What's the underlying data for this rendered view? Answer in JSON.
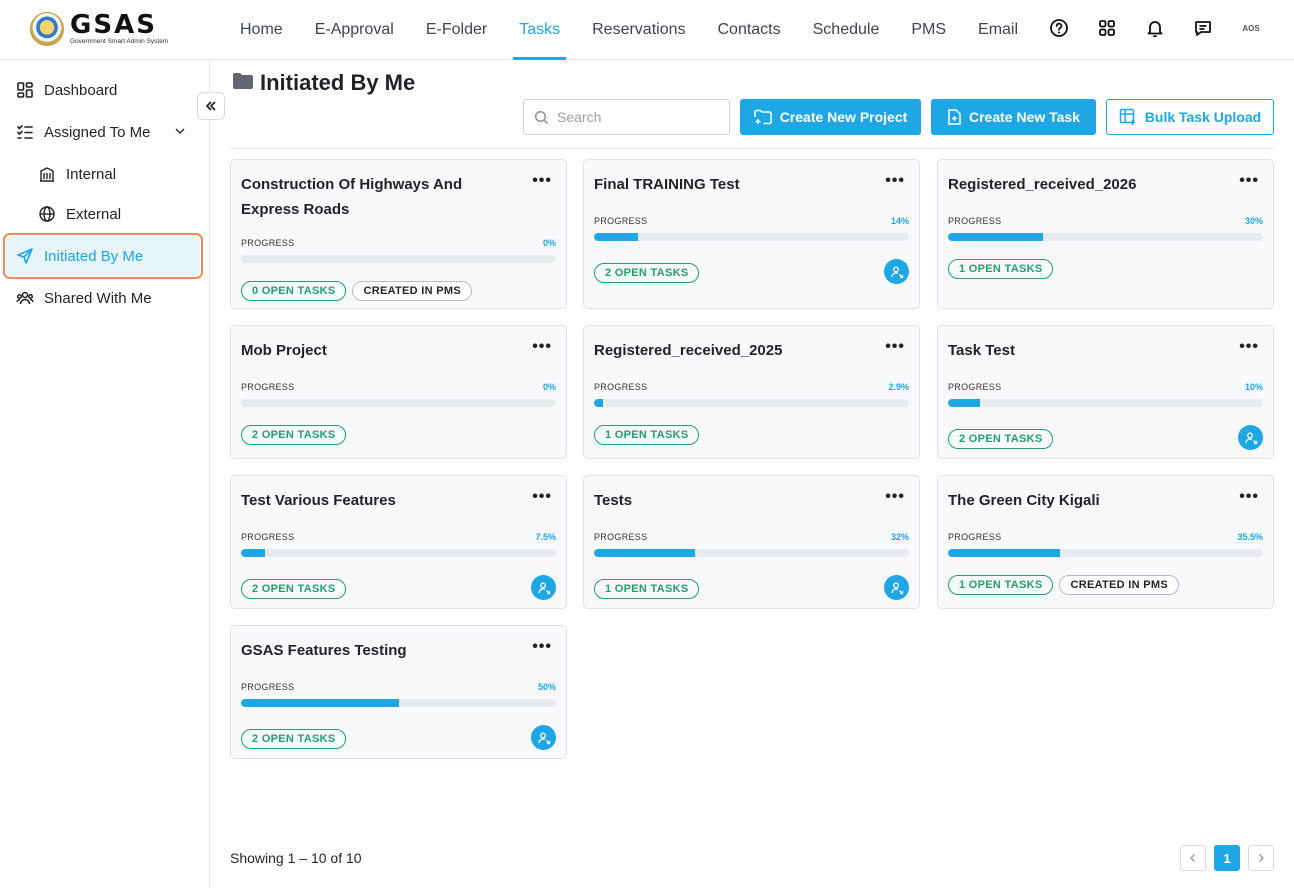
{
  "header": {
    "logo_title": "GSAS",
    "logo_subtitle": "Government Smart Admin System",
    "nav": [
      "Home",
      "E-Approval",
      "E-Folder",
      "Tasks",
      "Reservations",
      "Contacts",
      "Schedule",
      "PMS",
      "Email"
    ],
    "active_nav": "Tasks",
    "avatar_text": "AOS"
  },
  "sidebar": {
    "items": [
      {
        "label": "Dashboard",
        "icon": "dashboard-icon"
      },
      {
        "label": "Assigned To Me",
        "icon": "checklist-icon"
      },
      {
        "label": "Internal",
        "icon": "building-icon"
      },
      {
        "label": "External",
        "icon": "globe-icon"
      },
      {
        "label": "Initiated By Me",
        "icon": "send-icon"
      },
      {
        "label": "Shared With Me",
        "icon": "users-icon"
      }
    ],
    "active": "Initiated By Me"
  },
  "main": {
    "title": "Initiated By Me",
    "search_placeholder": "Search",
    "create_project_label": "Create New Project",
    "create_task_label": "Create New Task",
    "bulk_upload_label": "Bulk Task Upload",
    "progress_label": "PROGRESS",
    "cards": [
      {
        "title": "Construction Of Highways And Express Roads",
        "progress": 0,
        "progress_text": "0%",
        "open_tasks": "0 OPEN TASKS",
        "pms": "CREATED IN PMS",
        "assign": false
      },
      {
        "title": "Final TRAINING Test",
        "progress": 14,
        "progress_text": "14%",
        "open_tasks": "2 OPEN TASKS",
        "pms": "",
        "assign": true
      },
      {
        "title": "Registered_received_2026",
        "progress": 30,
        "progress_text": "30%",
        "open_tasks": "1 OPEN TASKS",
        "pms": "",
        "assign": false
      },
      {
        "title": "Mob Project",
        "progress": 0,
        "progress_text": "0%",
        "open_tasks": "2 OPEN TASKS",
        "pms": "",
        "assign": false
      },
      {
        "title": "Registered_received_2025",
        "progress": 2.9,
        "progress_text": "2.9%",
        "open_tasks": "1 OPEN TASKS",
        "pms": "",
        "assign": false
      },
      {
        "title": "Task Test",
        "progress": 10,
        "progress_text": "10%",
        "open_tasks": "2 OPEN TASKS",
        "pms": "",
        "assign": true
      },
      {
        "title": "Test Various Features",
        "progress": 7.5,
        "progress_text": "7.5%",
        "open_tasks": "2 OPEN TASKS",
        "pms": "",
        "assign": true
      },
      {
        "title": "Tests",
        "progress": 32,
        "progress_text": "32%",
        "open_tasks": "1 OPEN TASKS",
        "pms": "",
        "assign": true
      },
      {
        "title": "The Green City Kigali",
        "progress": 35.5,
        "progress_text": "35.5%",
        "open_tasks": "1 OPEN TASKS",
        "pms": "CREATED IN PMS",
        "assign": false
      },
      {
        "title": "GSAS Features Testing",
        "progress": 50,
        "progress_text": "50%",
        "open_tasks": "2 OPEN TASKS",
        "pms": "",
        "assign": true
      }
    ]
  },
  "footer": {
    "showing": "Showing 1 – 10 of 10",
    "current_page": "1"
  },
  "colors": {
    "accent": "#1ea7e4",
    "success": "#22a06b",
    "active_outline": "#f08a5d"
  }
}
